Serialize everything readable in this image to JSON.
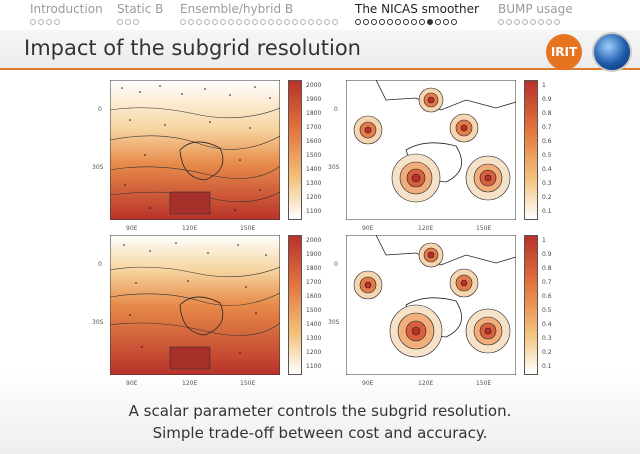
{
  "nav": {
    "sections": [
      {
        "label": "Introduction",
        "dots": 4,
        "filled": -1
      },
      {
        "label": "Static B",
        "dots": 3,
        "filled": -1
      },
      {
        "label": "Ensemble/hybrid B",
        "dots": 20,
        "filled": -1
      },
      {
        "label": "The NICAS smoother",
        "dots": 13,
        "filled": 9
      },
      {
        "label": "BUMP usage",
        "dots": 8,
        "filled": -1
      }
    ],
    "active_section": "The NICAS smoother"
  },
  "title": "Impact of the subgrid resolution",
  "logo_text": "IRIT",
  "maps": {
    "left": {
      "lat_ticks": [
        "0",
        "30S"
      ],
      "lon_ticks": [
        "90E",
        "120E",
        "150E"
      ],
      "colorbar_ticks": [
        "2000",
        "1900",
        "1800",
        "1700",
        "1600",
        "1500",
        "1400",
        "1300",
        "1200",
        "1100"
      ]
    },
    "right": {
      "lat_ticks": [
        "0",
        "30S"
      ],
      "lon_ticks": [
        "90E",
        "120E",
        "150E"
      ],
      "colorbar_ticks": [
        "1",
        "0.9",
        "0.8",
        "0.7",
        "0.6",
        "0.5",
        "0.4",
        "0.3",
        "0.2",
        "0.1"
      ]
    }
  },
  "colors": {
    "accent": "#e07a2a",
    "field_low": "#ffffff",
    "field_mid": "#f2b36a",
    "field_high": "#b8322a"
  },
  "caption": {
    "line1": "A scalar parameter controls the subgrid resolution.",
    "line2": "Simple trade-off between cost and accuracy."
  }
}
